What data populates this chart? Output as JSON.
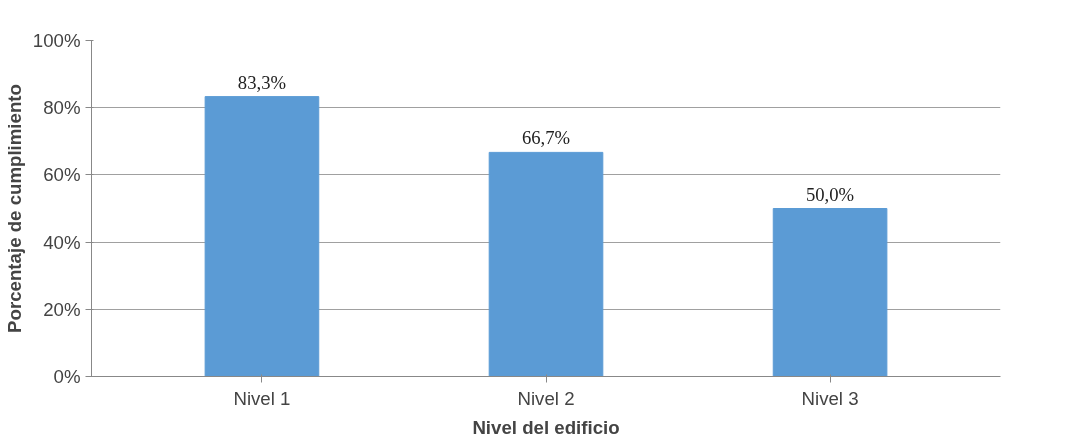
{
  "chart_data": {
    "type": "bar",
    "xlabel": "Nivel del edificio",
    "ylabel": "Porcentaje de cumplimiento",
    "categories": [
      "Nivel 1",
      "Nivel 2",
      "Nivel 3"
    ],
    "values": [
      83.3,
      66.7,
      50.0
    ],
    "value_labels": [
      "83,3%",
      "66,7%",
      "50,0%"
    ],
    "color": "#5b9bd5",
    "ylim": [
      0,
      100
    ],
    "yticks": [
      {
        "value": 0,
        "label": "0%"
      },
      {
        "value": 20,
        "label": "20%"
      },
      {
        "value": 40,
        "label": "40%"
      },
      {
        "value": 60,
        "label": "60%"
      },
      {
        "value": 80,
        "label": "80%"
      },
      {
        "value": 100,
        "label": "100%"
      }
    ],
    "grid": "y"
  }
}
